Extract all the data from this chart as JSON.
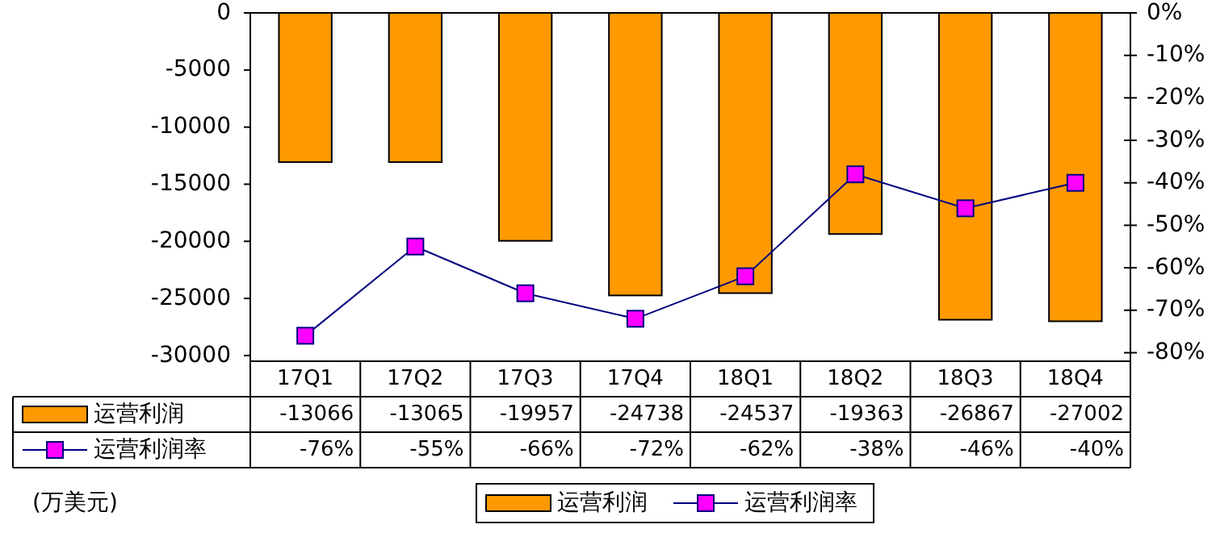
{
  "chart_data": {
    "type": "bar",
    "categories": [
      "17Q1",
      "17Q2",
      "17Q3",
      "17Q4",
      "18Q1",
      "18Q2",
      "18Q3",
      "18Q4"
    ],
    "series": [
      {
        "name": "运营利润",
        "color": "#ff9900",
        "values": [
          -13066,
          -13065,
          -19957,
          -24738,
          -24537,
          -19363,
          -26867,
          -27002
        ],
        "value_labels": [
          "-13066",
          "-13065",
          "-19957",
          "-24738",
          "-24537",
          "-19363",
          "-26867",
          "-27002"
        ]
      },
      {
        "name": "运营利润率",
        "type": "line",
        "axis": "y2",
        "color": "#000080",
        "marker": "square",
        "values": [
          -76,
          -55,
          -66,
          -72,
          -62,
          -38,
          -46,
          -40
        ],
        "value_labels": [
          "-76%",
          "-55%",
          "-66%",
          "-72%",
          "-62%",
          "-38%",
          "-46%",
          "-40%"
        ]
      }
    ],
    "ylim": [
      -30500,
      0
    ],
    "yticks": [
      0,
      -5000,
      -10000,
      -15000,
      -20000,
      -25000,
      -30000
    ],
    "y2lim": [
      -82,
      0
    ],
    "y2ticks": [
      {
        "value": 0,
        "label": "0%"
      },
      {
        "value": -10,
        "label": "-10%"
      },
      {
        "value": -20,
        "label": "-20%"
      },
      {
        "value": -30,
        "label": "-30%"
      },
      {
        "value": -40,
        "label": "-40%"
      },
      {
        "value": -50,
        "label": "-50%"
      },
      {
        "value": -60,
        "label": "-60%"
      },
      {
        "value": -70,
        "label": "-70%"
      },
      {
        "value": -80,
        "label": "-80%"
      }
    ],
    "annotations": [
      "(万美元)"
    ],
    "legend": "bottom",
    "grid": false
  }
}
